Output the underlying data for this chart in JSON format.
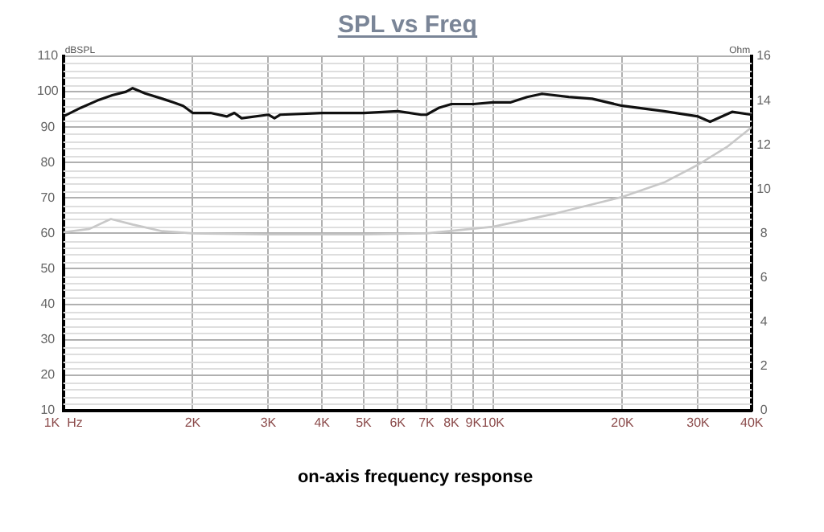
{
  "chart_data": {
    "type": "line",
    "title": "SPL vs Freq",
    "ylabel": "dBSPL",
    "y2label": "Ohm",
    "annotations": [
      "on-axis frequency response"
    ],
    "log": "x",
    "grid": true,
    "legend": false,
    "marker": "none",
    "line_style": "solid",
    "xlim": [
      1000,
      40000
    ],
    "xticks": [
      {
        "value": 1000,
        "label": "1K  Hz"
      },
      {
        "value": 2000,
        "label": "2K"
      },
      {
        "value": 3000,
        "label": "3K"
      },
      {
        "value": 4000,
        "label": "4K"
      },
      {
        "value": 5000,
        "label": "5K"
      },
      {
        "value": 6000,
        "label": "6K"
      },
      {
        "value": 7000,
        "label": "7K"
      },
      {
        "value": 8000,
        "label": "8K"
      },
      {
        "value": 9000,
        "label": "9K"
      },
      {
        "value": 10000,
        "label": "10K"
      },
      {
        "value": 20000,
        "label": "20K"
      },
      {
        "value": 30000,
        "label": "30K"
      },
      {
        "value": 40000,
        "label": "40K"
      }
    ],
    "ylim": [
      10,
      110
    ],
    "yticks": [
      10,
      20,
      30,
      40,
      50,
      60,
      70,
      80,
      90,
      100,
      110
    ],
    "y2lim": [
      0,
      16
    ],
    "y2ticks": [
      0,
      2,
      4,
      6,
      8,
      10,
      12,
      14,
      16
    ],
    "series": [
      {
        "color": "#111111",
        "x": [
          1000,
          1100,
          1200,
          1300,
          1400,
          1450,
          1550,
          1700,
          1800,
          1900,
          2000,
          2200,
          2400,
          2500,
          2600,
          3000,
          3100,
          3200,
          4000,
          5000,
          6000,
          6800,
          7000,
          7500,
          8000,
          9000,
          10000,
          11000,
          12000,
          13000,
          15000,
          17000,
          20000,
          25000,
          30000,
          32000,
          36000,
          40000
        ],
        "values": [
          93,
          95.5,
          97.5,
          99,
          100,
          101,
          99.5,
          98,
          97,
          96,
          94,
          94,
          93,
          94,
          92.5,
          93.5,
          92.5,
          93.5,
          94,
          94,
          94.5,
          93.5,
          93.5,
          95.5,
          96.5,
          96.5,
          97,
          97,
          98.5,
          99.4,
          98.5,
          98,
          96,
          94.5,
          93,
          91.5,
          94.3,
          93.5
        ]
      },
      {
        "color": "#c8c8c8",
        "axis": "y2",
        "x": [
          1000,
          1150,
          1290,
          1450,
          1700,
          2000,
          3000,
          5000,
          7000,
          10000,
          14000,
          20000,
          25000,
          30000,
          35000,
          40000
        ],
        "values": [
          8.05,
          8.2,
          8.65,
          8.4,
          8.1,
          8.0,
          7.95,
          7.95,
          8.0,
          8.3,
          8.9,
          9.65,
          10.3,
          11.1,
          11.9,
          12.8
        ]
      }
    ]
  }
}
